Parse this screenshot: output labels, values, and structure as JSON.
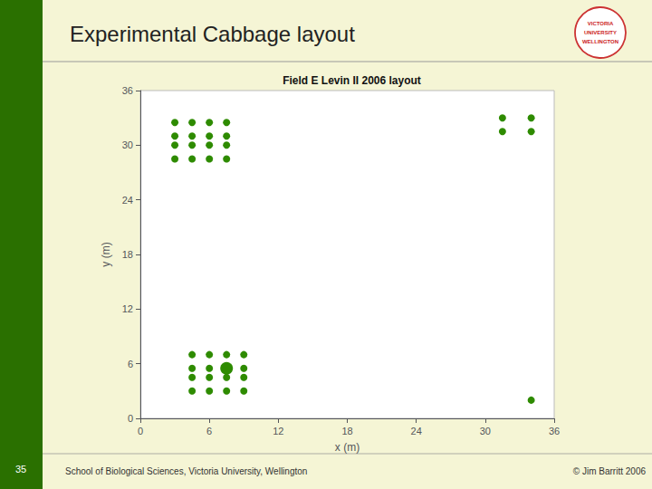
{
  "chart_data": {
    "type": "scatter",
    "title": "Experimental Cabbage layout",
    "subtitle": "Field E Levin II 2006 layout",
    "xlabel": "x (m)",
    "ylabel": "y (m)",
    "xlim": [
      0,
      36
    ],
    "ylim": [
      0,
      36
    ],
    "xticks": [
      0,
      6,
      12,
      18,
      24,
      30,
      36
    ],
    "yticks": [
      0,
      6,
      12,
      18,
      24,
      30,
      36
    ],
    "grid": false,
    "annotations": [
      "School of Biological Sciences, Victoria University, Wellington",
      "© Jim Barritt 2006",
      "35",
      "VICTORIA",
      "UNIVERSITY",
      "WELLINGTON"
    ],
    "series": [
      {
        "color": "#2e8b00",
        "marker": "circle",
        "x": [
          3,
          4.5,
          6,
          7.5,
          3,
          4.5,
          6,
          7.5,
          3,
          4.5,
          6,
          7.5,
          3,
          4.5,
          6,
          7.5
        ],
        "values": [
          32.5,
          32.5,
          32.5,
          32.5,
          31,
          31,
          31,
          31,
          30,
          30,
          30,
          30,
          28.5,
          28.5,
          28.5,
          28.5
        ]
      },
      {
        "color": "#2e8b00",
        "marker": "circle",
        "x": [
          31.5,
          34.0,
          31.5,
          34.0
        ],
        "values": [
          33.0,
          33.0,
          31.5,
          31.5
        ]
      },
      {
        "color": "#2e8b00",
        "marker": "circle",
        "x": [
          4.5,
          6,
          7.5,
          9,
          4.5,
          6,
          7.5,
          9,
          4.5,
          6,
          7.5,
          9,
          4.5,
          6,
          7.5,
          9
        ],
        "values": [
          7,
          7,
          7,
          7,
          5.5,
          5.5,
          5.5,
          5.5,
          4.5,
          4.5,
          4.5,
          4.5,
          3,
          3,
          3,
          3
        ]
      },
      {
        "color": "#2e8b00",
        "marker": "large-circle",
        "x": [
          7.5
        ],
        "values": [
          5.5
        ]
      },
      {
        "color": "#2e8b00",
        "marker": "circle",
        "x": [
          34
        ],
        "values": [
          2
        ]
      }
    ]
  }
}
